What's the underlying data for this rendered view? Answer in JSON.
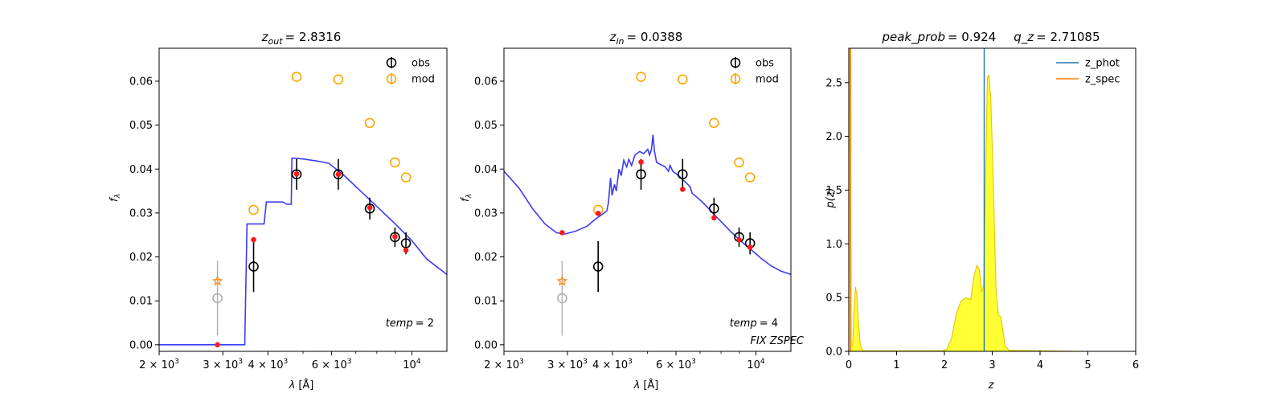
{
  "colors": {
    "sed_line": "#3b3bf2",
    "obs": "#000000",
    "mod": "#ffa500",
    "model_flux": "#ff1a1a",
    "excluded": "#b0b0b0",
    "excluded_star": "#ff8c1a",
    "pz_fill": "#ffff33",
    "pz_edge": "#e6c200",
    "z_phot": "#1f77b4",
    "z_spec": "#ff7f0e"
  },
  "chart_data": [
    {
      "type": "scatter",
      "panel": "sed-out",
      "title_sym": "z",
      "title_sub": "out",
      "title_val": "= 2.8316",
      "xlabel_sym": "λ",
      "xlabel_unit": "[Å]",
      "ylabel": "f",
      "ylabel_sub": "λ",
      "xscale": "log",
      "xlim": [
        2000,
        12500
      ],
      "ylim": [
        -0.0015,
        0.0675
      ],
      "xticks": [
        {
          "value": 2000,
          "mant": "2 × 10",
          "exp": "3"
        },
        {
          "value": 3000,
          "mant": "3 × 10",
          "exp": "3"
        },
        {
          "value": 4000,
          "mant": "4 × 10",
          "exp": "3"
        },
        {
          "value": 6000,
          "mant": "6 × 10",
          "exp": "3"
        },
        {
          "value": 10000,
          "mant": "10",
          "exp": "4"
        }
      ],
      "yticks": [
        {
          "value": 0.0,
          "label": "0.00"
        },
        {
          "value": 0.01,
          "label": "0.01"
        },
        {
          "value": 0.02,
          "label": "0.02"
        },
        {
          "value": 0.03,
          "label": "0.03"
        },
        {
          "value": 0.04,
          "label": "0.04"
        },
        {
          "value": 0.05,
          "label": "0.05"
        },
        {
          "value": 0.06,
          "label": "0.06"
        }
      ],
      "sed": [
        [
          2000,
          0
        ],
        [
          3450,
          0
        ],
        [
          3500,
          0.0275
        ],
        [
          3900,
          0.0275
        ],
        [
          3960,
          0.0325
        ],
        [
          4400,
          0.0325
        ],
        [
          4500,
          0.032
        ],
        [
          4640,
          0.032
        ],
        [
          4660,
          0.0425
        ],
        [
          5000,
          0.0423
        ],
        [
          5500,
          0.0418
        ],
        [
          5900,
          0.0413
        ],
        [
          6500,
          0.0385
        ],
        [
          7000,
          0.036
        ],
        [
          8000,
          0.0315
        ],
        [
          9000,
          0.0275
        ],
        [
          10000,
          0.0237
        ],
        [
          11000,
          0.0195
        ],
        [
          12500,
          0.016
        ]
      ],
      "obs": [
        {
          "x": 3650,
          "y": 0.0178,
          "err": 0.0058
        },
        {
          "x": 4800,
          "y": 0.0388,
          "err": 0.0035
        },
        {
          "x": 6260,
          "y": 0.0388,
          "err": 0.0035
        },
        {
          "x": 7650,
          "y": 0.031,
          "err": 0.0025
        },
        {
          "x": 8980,
          "y": 0.0245,
          "err": 0.0022
        },
        {
          "x": 9630,
          "y": 0.0231,
          "err": 0.0025
        }
      ],
      "mod": [
        {
          "x": 3650,
          "y": 0.0307
        },
        {
          "x": 4800,
          "y": 0.061
        },
        {
          "x": 6260,
          "y": 0.0604
        },
        {
          "x": 7650,
          "y": 0.0505
        },
        {
          "x": 8980,
          "y": 0.0415
        },
        {
          "x": 9630,
          "y": 0.0381
        }
      ],
      "model_flux": [
        {
          "x": 2900,
          "y": 0.0
        },
        {
          "x": 3650,
          "y": 0.0239
        },
        {
          "x": 4800,
          "y": 0.0389
        },
        {
          "x": 6260,
          "y": 0.0388
        },
        {
          "x": 7650,
          "y": 0.0312
        },
        {
          "x": 8980,
          "y": 0.0246
        },
        {
          "x": 9630,
          "y": 0.0215
        }
      ],
      "excluded": {
        "x": 2900,
        "y": 0.0106,
        "err": 0.0085,
        "star_y": 0.0145
      },
      "legend": [
        {
          "label": "obs",
          "kind": "obs"
        },
        {
          "label": "mod",
          "kind": "mod"
        }
      ],
      "annotations": [
        {
          "sym": "temp",
          "val": "= 2"
        }
      ]
    },
    {
      "type": "scatter",
      "panel": "sed-in",
      "title_sym": "z",
      "title_sub": "in",
      "title_val": "= 0.0388",
      "xlabel_sym": "λ",
      "xlabel_unit": "[Å]",
      "ylabel": "f",
      "ylabel_sub": "λ",
      "xscale": "log",
      "xlim": [
        2000,
        12500
      ],
      "ylim": [
        -0.0015,
        0.0675
      ],
      "xticks": [
        {
          "value": 2000,
          "mant": "2 × 10",
          "exp": "3"
        },
        {
          "value": 3000,
          "mant": "3 × 10",
          "exp": "3"
        },
        {
          "value": 4000,
          "mant": "4 × 10",
          "exp": "3"
        },
        {
          "value": 6000,
          "mant": "6 × 10",
          "exp": "3"
        },
        {
          "value": 10000,
          "mant": "10",
          "exp": "4"
        }
      ],
      "yticks": [
        {
          "value": 0.0,
          "label": "0.00"
        },
        {
          "value": 0.01,
          "label": "0.01"
        },
        {
          "value": 0.02,
          "label": "0.02"
        },
        {
          "value": 0.03,
          "label": "0.03"
        },
        {
          "value": 0.04,
          "label": "0.04"
        },
        {
          "value": 0.05,
          "label": "0.05"
        },
        {
          "value": 0.06,
          "label": "0.06"
        }
      ],
      "sed": [
        [
          2000,
          0.0395
        ],
        [
          2200,
          0.0357
        ],
        [
          2400,
          0.031
        ],
        [
          2600,
          0.0275
        ],
        [
          2800,
          0.0255
        ],
        [
          2950,
          0.0252
        ],
        [
          3150,
          0.0258
        ],
        [
          3400,
          0.027
        ],
        [
          3600,
          0.0287
        ],
        [
          3750,
          0.0297
        ],
        [
          3860,
          0.0305
        ],
        [
          3900,
          0.0325
        ],
        [
          3950,
          0.038
        ],
        [
          3990,
          0.034
        ],
        [
          4050,
          0.0365
        ],
        [
          4100,
          0.035
        ],
        [
          4170,
          0.04
        ],
        [
          4230,
          0.0385
        ],
        [
          4300,
          0.042
        ],
        [
          4380,
          0.0405
        ],
        [
          4440,
          0.0422
        ],
        [
          4520,
          0.0408
        ],
        [
          4620,
          0.0432
        ],
        [
          4760,
          0.044
        ],
        [
          4880,
          0.0435
        ],
        [
          5010,
          0.0445
        ],
        [
          5070,
          0.0432
        ],
        [
          5130,
          0.0445
        ],
        [
          5180,
          0.0478
        ],
        [
          5230,
          0.044
        ],
        [
          5300,
          0.0415
        ],
        [
          5600,
          0.0405
        ],
        [
          5720,
          0.0395
        ],
        [
          5780,
          0.0408
        ],
        [
          5880,
          0.0395
        ],
        [
          6100,
          0.0385
        ],
        [
          6563,
          0.036
        ],
        [
          6650,
          0.0345
        ],
        [
          7100,
          0.0325
        ],
        [
          7800,
          0.029
        ],
        [
          8500,
          0.0258
        ],
        [
          9200,
          0.0232
        ],
        [
          9800,
          0.0213
        ],
        [
          10400,
          0.0195
        ],
        [
          11000,
          0.018
        ],
        [
          11700,
          0.0168
        ],
        [
          12500,
          0.016
        ]
      ],
      "obs": [
        {
          "x": 3650,
          "y": 0.0178,
          "err": 0.0058
        },
        {
          "x": 4800,
          "y": 0.0388,
          "err": 0.0035
        },
        {
          "x": 6260,
          "y": 0.0388,
          "err": 0.0035
        },
        {
          "x": 7650,
          "y": 0.031,
          "err": 0.0025
        },
        {
          "x": 8980,
          "y": 0.0245,
          "err": 0.0022
        },
        {
          "x": 9630,
          "y": 0.0231,
          "err": 0.0025
        }
      ],
      "mod": [
        {
          "x": 3650,
          "y": 0.0307
        },
        {
          "x": 4800,
          "y": 0.061
        },
        {
          "x": 6260,
          "y": 0.0604
        },
        {
          "x": 7650,
          "y": 0.0505
        },
        {
          "x": 8980,
          "y": 0.0415
        },
        {
          "x": 9630,
          "y": 0.0381
        }
      ],
      "model_flux": [
        {
          "x": 2900,
          "y": 0.0255
        },
        {
          "x": 3650,
          "y": 0.0299
        },
        {
          "x": 4800,
          "y": 0.0416
        },
        {
          "x": 6260,
          "y": 0.0354
        },
        {
          "x": 7650,
          "y": 0.0289
        },
        {
          "x": 8980,
          "y": 0.0239
        },
        {
          "x": 9630,
          "y": 0.0222
        }
      ],
      "excluded": {
        "x": 2900,
        "y": 0.0106,
        "err": 0.0085,
        "star_y": 0.0145
      },
      "legend": [
        {
          "label": "obs",
          "kind": "obs"
        },
        {
          "label": "mod",
          "kind": "mod"
        }
      ],
      "annotations": [
        {
          "sym": "temp",
          "val": "= 4"
        },
        {
          "sym": "FIX ZSPEC",
          "val": ""
        }
      ]
    },
    {
      "type": "area",
      "panel": "pz",
      "title_a_sym": "peak_prob",
      "title_a_val": "= 0.924",
      "title_b_sym": "q_z",
      "title_b_val": "= 2.71085",
      "xlabel_sym": "z",
      "ylabel": "p(z)",
      "xlim": [
        0,
        6
      ],
      "ylim": [
        0,
        2.82
      ],
      "xticks": [
        {
          "value": 0,
          "label": "0"
        },
        {
          "value": 1,
          "label": "1"
        },
        {
          "value": 2,
          "label": "2"
        },
        {
          "value": 3,
          "label": "3"
        },
        {
          "value": 4,
          "label": "4"
        },
        {
          "value": 5,
          "label": "5"
        },
        {
          "value": 6,
          "label": "6"
        }
      ],
      "yticks": [
        {
          "value": 0.0,
          "label": "0.0"
        },
        {
          "value": 0.5,
          "label": "0.5"
        },
        {
          "value": 1.0,
          "label": "1.0"
        },
        {
          "value": 1.5,
          "label": "1.5"
        },
        {
          "value": 2.0,
          "label": "2.0"
        },
        {
          "value": 2.5,
          "label": "2.5"
        }
      ],
      "pz": [
        [
          0,
          0
        ],
        [
          0.02,
          3.0
        ],
        [
          0.035,
          3.0
        ],
        [
          0.05,
          0.05
        ],
        [
          0.08,
          0.05
        ],
        [
          0.11,
          0.35
        ],
        [
          0.14,
          0.6
        ],
        [
          0.17,
          0.52
        ],
        [
          0.2,
          0.28
        ],
        [
          0.24,
          0.06
        ],
        [
          0.3,
          0.005
        ],
        [
          1.95,
          0.005
        ],
        [
          2.05,
          0.02
        ],
        [
          2.15,
          0.12
        ],
        [
          2.25,
          0.35
        ],
        [
          2.35,
          0.47
        ],
        [
          2.45,
          0.5
        ],
        [
          2.55,
          0.48
        ],
        [
          2.62,
          0.7
        ],
        [
          2.68,
          0.8
        ],
        [
          2.73,
          0.76
        ],
        [
          2.78,
          0.55
        ],
        [
          2.82,
          0.62
        ],
        [
          2.86,
          1.6
        ],
        [
          2.9,
          2.55
        ],
        [
          2.93,
          2.57
        ],
        [
          2.97,
          2.35
        ],
        [
          3.02,
          1.6
        ],
        [
          3.08,
          0.55
        ],
        [
          3.13,
          0.34
        ],
        [
          3.18,
          0.32
        ],
        [
          3.22,
          0.2
        ],
        [
          3.27,
          0.05
        ],
        [
          3.35,
          0.01
        ],
        [
          5.0,
          0.0
        ]
      ],
      "z_phot": 2.8316,
      "z_spec": 0.0388,
      "legend": [
        {
          "label": "z_phot",
          "kind": "z_phot"
        },
        {
          "label": "z_spec",
          "kind": "z_spec"
        }
      ]
    }
  ]
}
